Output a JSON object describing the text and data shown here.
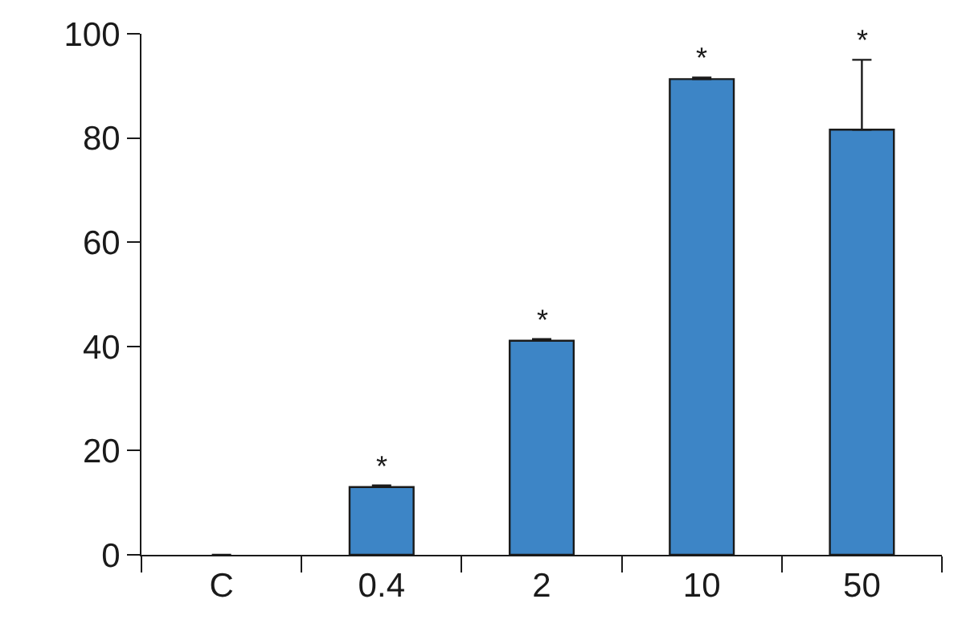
{
  "chart_data": {
    "type": "bar",
    "categories": [
      "C",
      "0.4",
      "2",
      "10",
      "50"
    ],
    "values": [
      0,
      13.0,
      41.1,
      91.3,
      81.6
    ],
    "errors": [
      null,
      0.3,
      0.3,
      0.3,
      13.4
    ],
    "color": "#3d85c6",
    "ylim": [
      0,
      100
    ],
    "yticks": [
      0,
      20,
      40,
      60,
      80,
      100
    ],
    "annotations": [
      {
        "text": "*",
        "x": "0.4",
        "y": 13.3
      },
      {
        "text": "*",
        "x": "2",
        "y": 41.4
      },
      {
        "text": "*",
        "x": "10",
        "y": 91.6
      },
      {
        "text": "*",
        "x": "50",
        "y": 95.0
      }
    ]
  }
}
